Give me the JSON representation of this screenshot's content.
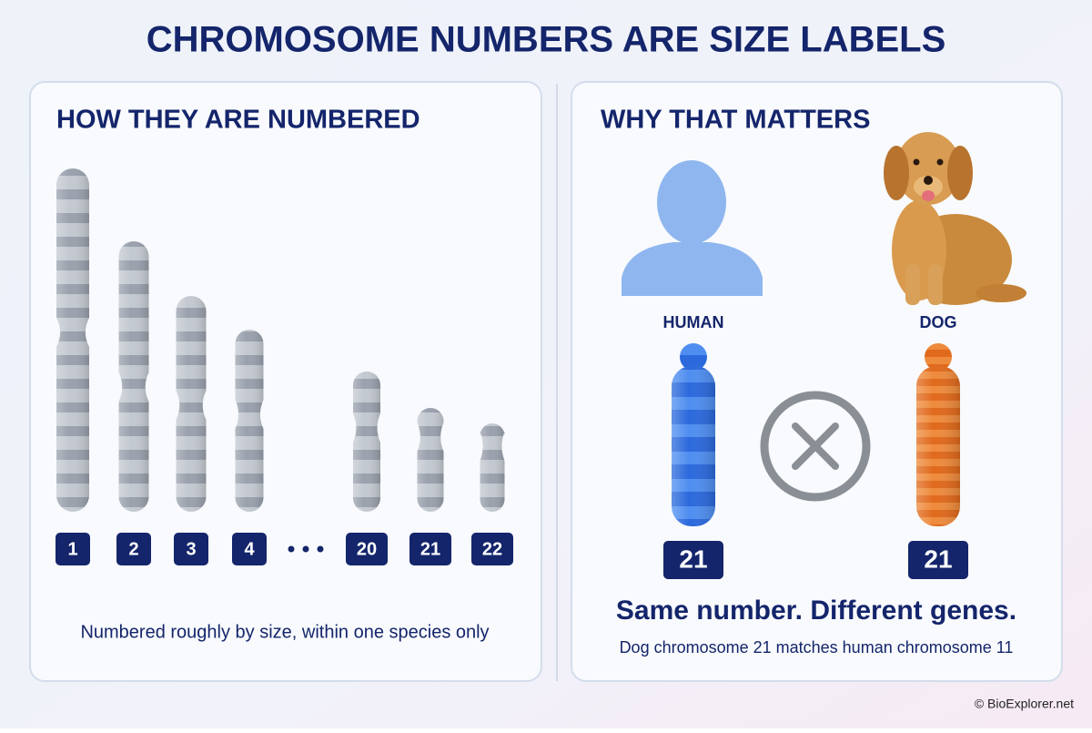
{
  "title": "CHROMOSOME NUMBERS ARE SIZE LABELS",
  "left": {
    "heading": "HOW THEY ARE NUMBERED",
    "chromosomes": [
      "1",
      "2",
      "3",
      "4",
      "20",
      "21",
      "22"
    ],
    "caption": "Numbered roughly by size, within one species only"
  },
  "right": {
    "heading": "WHY THAT MATTERS",
    "species": [
      {
        "label": "HUMAN",
        "chromosome": "21"
      },
      {
        "label": "DOG",
        "chromosome": "21"
      }
    ],
    "headline": "Same number. Different genes.",
    "note": "Dog chromosome 21 matches human chromosome 11"
  },
  "footer": "© BioExplorer.net"
}
